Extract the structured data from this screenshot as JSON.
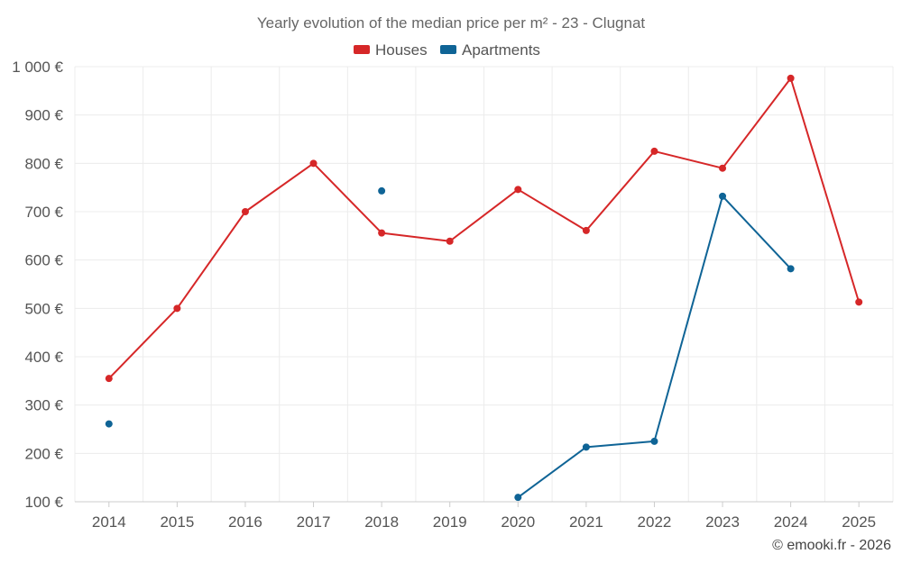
{
  "chart_data": {
    "type": "line",
    "title": "Yearly evolution of the median price per m² - 23 - Clugnat",
    "categories": [
      "2014",
      "2015",
      "2016",
      "2017",
      "2018",
      "2019",
      "2020",
      "2021",
      "2022",
      "2023",
      "2024",
      "2025"
    ],
    "ylim": [
      100,
      1000
    ],
    "yticks": [
      100,
      200,
      300,
      400,
      500,
      600,
      700,
      800,
      900,
      1000
    ],
    "ytick_labels": [
      "100 €",
      "200 €",
      "300 €",
      "400 €",
      "500 €",
      "600 €",
      "700 €",
      "800 €",
      "900 €",
      "1 000 €"
    ],
    "grid": true,
    "legend_position": "top-center",
    "series": [
      {
        "name": "Houses",
        "color": "#d62728",
        "values": [
          355,
          500,
          700,
          800,
          656,
          639,
          746,
          661,
          825,
          790,
          976,
          513
        ]
      },
      {
        "name": "Apartments",
        "color": "#0f6496",
        "values": [
          261,
          null,
          null,
          null,
          743,
          null,
          109,
          213,
          225,
          732,
          582,
          null
        ]
      }
    ],
    "credit": "© emooki.fr - 2026"
  }
}
